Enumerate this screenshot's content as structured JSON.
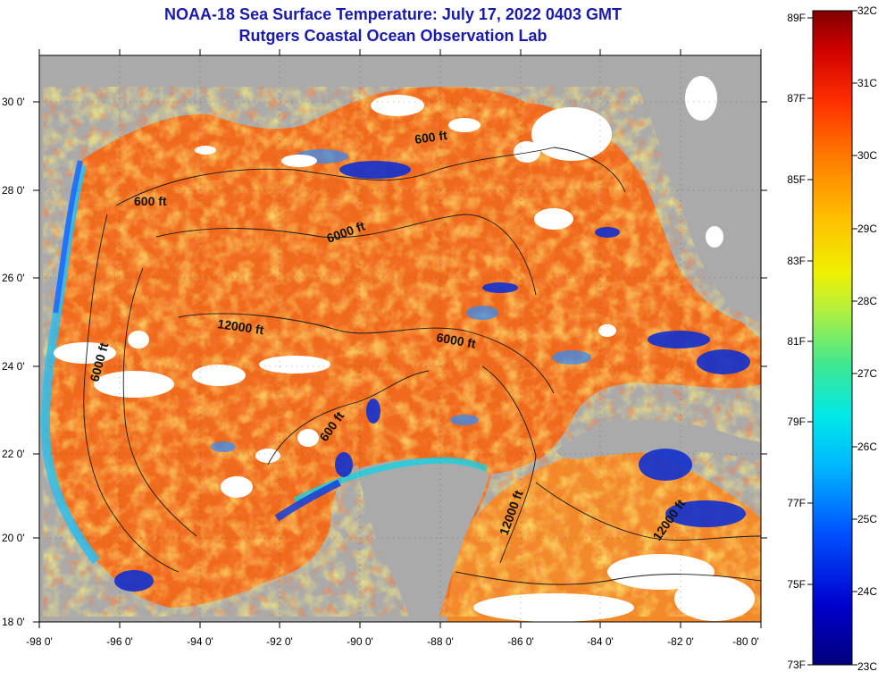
{
  "title": {
    "line1": "NOAA-18 Sea Surface Temperature:  July 17, 2022 0403 GMT",
    "line2": "Rutgers Coastal Ocean Observation Lab"
  },
  "axes": {
    "lat_labels": [
      "18 0'",
      "20 0'",
      "22 0'",
      "24 0'",
      "26 0'",
      "28 0'",
      "30 0'"
    ],
    "lon_labels": [
      "-98 0'",
      "-96 0'",
      "-94 0'",
      "-92 0'",
      "-90 0'",
      "-88 0'",
      "-86 0'",
      "-84 0'",
      "-82 0'",
      "-80 0'"
    ]
  },
  "contours": {
    "labels": [
      "600 ft",
      "6000 ft",
      "12000 ft",
      "6000 ft",
      "600 ft",
      "6000 ft",
      "600 ft",
      "12000 ft",
      "12000 ft"
    ]
  },
  "colorbar": {
    "fahrenheit": [
      "89F",
      "87F",
      "85F",
      "83F",
      "81F",
      "79F",
      "77F",
      "75F",
      "73F"
    ],
    "celsius": [
      "32C",
      "31C",
      "30C",
      "29C",
      "28C",
      "27C",
      "26C",
      "25C",
      "24C",
      "23C"
    ]
  },
  "colors": {
    "land": "#aaaaaa",
    "cloud": "#ffffff",
    "warm": "#f06a1c",
    "title": "#1a1aa8"
  }
}
